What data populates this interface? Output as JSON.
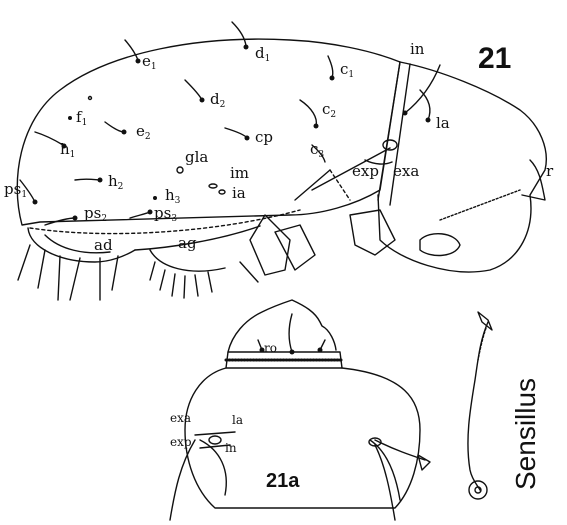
{
  "figure": {
    "main_number": "21",
    "inset_number": "21a",
    "side_caption": "Sensillus"
  },
  "lateral_view_labels": {
    "e1": {
      "base": "e",
      "sub": "1"
    },
    "d1": {
      "base": "d",
      "sub": "1"
    },
    "c1": {
      "base": "c",
      "sub": "1"
    },
    "d2": {
      "base": "d",
      "sub": "2"
    },
    "c2": {
      "base": "c",
      "sub": "2"
    },
    "f1": {
      "base": "f",
      "sub": "1"
    },
    "e2": {
      "base": "e",
      "sub": "2"
    },
    "cp": {
      "base": "cp",
      "sub": ""
    },
    "c3": {
      "base": "c",
      "sub": "3"
    },
    "h1": {
      "base": "h",
      "sub": "1"
    },
    "gla": {
      "base": "gla",
      "sub": ""
    },
    "im": {
      "base": "im",
      "sub": ""
    },
    "h2": {
      "base": "h",
      "sub": "2"
    },
    "h3": {
      "base": "h",
      "sub": "3"
    },
    "ia": {
      "base": "ia",
      "sub": ""
    },
    "ps1": {
      "base": "ps",
      "sub": "1"
    },
    "ps2": {
      "base": "ps",
      "sub": "2"
    },
    "ps3": {
      "base": "ps",
      "sub": "3"
    },
    "ad": {
      "base": "ad",
      "sub": ""
    },
    "ag": {
      "base": "ag",
      "sub": ""
    },
    "in": {
      "base": "in",
      "sub": ""
    },
    "la": {
      "base": "la",
      "sub": ""
    },
    "exp": {
      "base": "exp",
      "sub": ""
    },
    "exa": {
      "base": "exa",
      "sub": ""
    },
    "ro": {
      "base": "r",
      "sub": ""
    }
  },
  "dorsal_view_labels": {
    "ro": "ro",
    "exa": "exa",
    "la": "la",
    "exp": "exp",
    "in": "in"
  }
}
